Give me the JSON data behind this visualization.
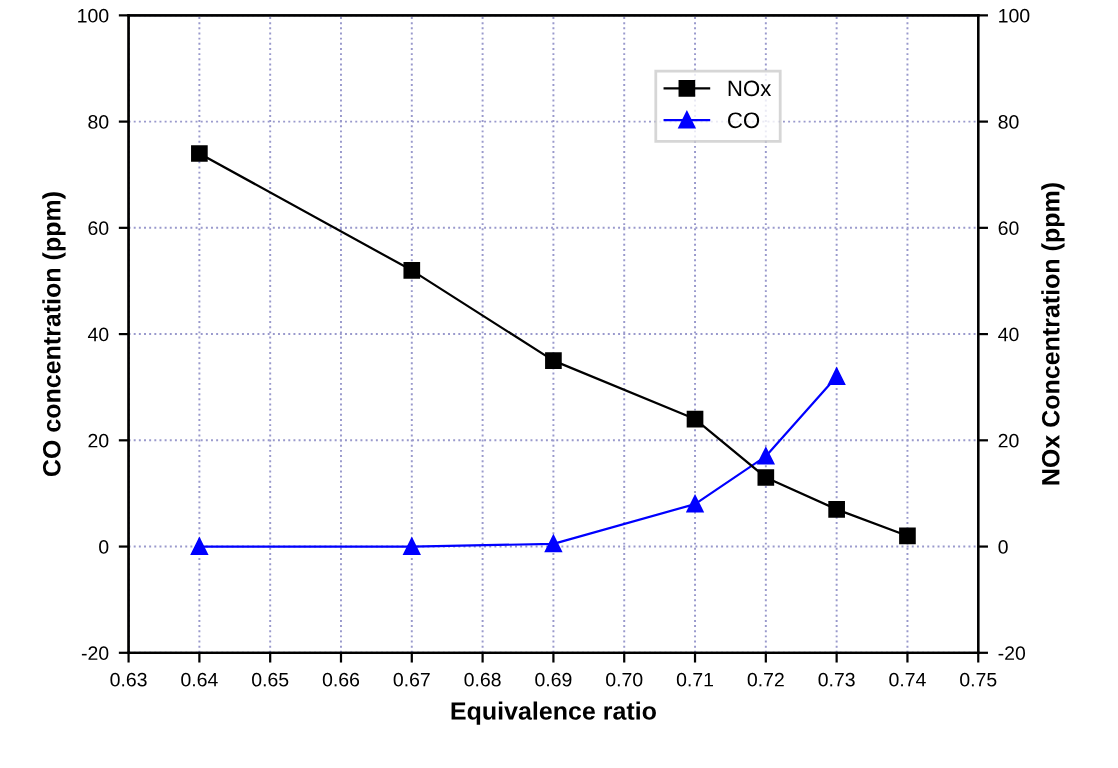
{
  "chart_data": {
    "type": "line",
    "xlabel": "Equivalence ratio",
    "ylabel": "CO concentration (ppm)",
    "y2label": "NOx Concentration (ppm)",
    "x": [
      0.64,
      0.67,
      0.69,
      0.71,
      0.72,
      0.73,
      0.74
    ],
    "series": [
      {
        "name": "NOx",
        "color": "#000000",
        "values": [
          74,
          52,
          35,
          24,
          13,
          7,
          2
        ],
        "axis": "y2",
        "marker": "square"
      },
      {
        "name": "CO",
        "color": "#0000ff",
        "values": [
          0,
          0,
          0.5,
          8,
          17,
          32,
          null
        ],
        "marker": "triangle"
      }
    ],
    "xlim": [
      0.63,
      0.75
    ],
    "xticks": [
      0.63,
      0.64,
      0.65,
      0.66,
      0.67,
      0.68,
      0.69,
      {
        "value": 0.7,
        "label": "0.70"
      },
      0.71,
      0.72,
      0.73,
      0.74,
      0.75
    ],
    "ylim": [
      -20,
      100
    ],
    "yticks": [
      -20,
      0,
      20,
      40,
      60,
      80,
      100
    ],
    "y2lim": [
      -20,
      100
    ],
    "y2ticks": [
      -20,
      0,
      20,
      40,
      60,
      80,
      100
    ],
    "grid": true,
    "legend": "top right",
    "line_style": "solid"
  }
}
